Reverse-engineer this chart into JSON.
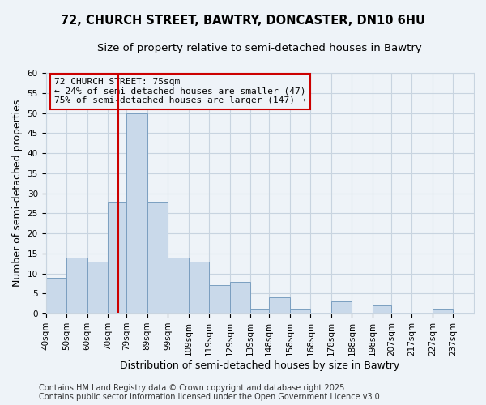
{
  "title": "72, CHURCH STREET, BAWTRY, DONCASTER, DN10 6HU",
  "subtitle": "Size of property relative to semi-detached houses in Bawtry",
  "xlabel": "Distribution of semi-detached houses by size in Bawtry",
  "ylabel": "Number of semi-detached properties",
  "bin_labels": [
    "40sqm",
    "50sqm",
    "60sqm",
    "70sqm",
    "79sqm",
    "89sqm",
    "99sqm",
    "109sqm",
    "119sqm",
    "129sqm",
    "139sqm",
    "148sqm",
    "158sqm",
    "168sqm",
    "178sqm",
    "188sqm",
    "198sqm",
    "207sqm",
    "217sqm",
    "227sqm",
    "237sqm"
  ],
  "bin_edges": [
    40,
    50,
    60,
    70,
    79,
    89,
    99,
    109,
    119,
    129,
    139,
    148,
    158,
    168,
    178,
    188,
    198,
    207,
    217,
    227,
    237,
    247
  ],
  "counts": [
    9,
    14,
    13,
    28,
    50,
    28,
    14,
    13,
    7,
    8,
    1,
    4,
    1,
    0,
    3,
    0,
    2,
    0,
    0,
    1,
    0
  ],
  "bar_facecolor": "#c9d9ea",
  "bar_edgecolor": "#7b9fc0",
  "grid_color": "#c8d4e0",
  "background_color": "#eef3f8",
  "vline_x": 75,
  "vline_color": "#cc0000",
  "annotation_title": "72 CHURCH STREET: 75sqm",
  "annotation_line1": "← 24% of semi-detached houses are smaller (47)",
  "annotation_line2": "75% of semi-detached houses are larger (147) →",
  "annotation_box_edgecolor": "#cc0000",
  "ylim": [
    0,
    60
  ],
  "yticks": [
    0,
    5,
    10,
    15,
    20,
    25,
    30,
    35,
    40,
    45,
    50,
    55,
    60
  ],
  "footer1": "Contains HM Land Registry data © Crown copyright and database right 2025.",
  "footer2": "Contains public sector information licensed under the Open Government Licence v3.0.",
  "title_fontsize": 10.5,
  "subtitle_fontsize": 9.5,
  "axis_label_fontsize": 9,
  "tick_fontsize": 7.5,
  "annotation_fontsize": 8,
  "footer_fontsize": 7
}
